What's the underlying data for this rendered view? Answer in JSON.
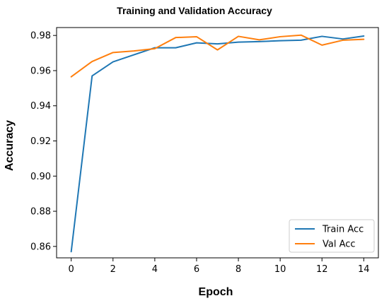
{
  "chart_data": {
    "type": "line",
    "title": "Training and Validation Accuracy",
    "xlabel": "Epoch",
    "ylabel": "Accuracy",
    "x": [
      0,
      1,
      2,
      3,
      4,
      5,
      6,
      7,
      8,
      9,
      10,
      11,
      12,
      13,
      14
    ],
    "xlim": [
      -0.7,
      14.7
    ],
    "ylim": [
      0.8535,
      0.9845
    ],
    "xticks": [
      0,
      2,
      4,
      6,
      8,
      10,
      12,
      14
    ],
    "xtick_labels": [
      "0",
      "2",
      "4",
      "6",
      "8",
      "10",
      "12",
      "14"
    ],
    "yticks": [
      0.86,
      0.88,
      0.9,
      0.92,
      0.94,
      0.96,
      0.98
    ],
    "ytick_labels": [
      "0.86",
      "0.88",
      "0.90",
      "0.92",
      "0.94",
      "0.96",
      "0.98"
    ],
    "grid": false,
    "legend_position": "lower-right",
    "series": [
      {
        "name": "Train Acc",
        "color": "#1f77b4",
        "values": [
          0.857,
          0.957,
          0.965,
          0.969,
          0.973,
          0.973,
          0.9758,
          0.9752,
          0.9762,
          0.9765,
          0.977,
          0.9773,
          0.9795,
          0.978,
          0.9797
        ]
      },
      {
        "name": "Val Acc",
        "color": "#ff7f0e",
        "values": [
          0.9565,
          0.9652,
          0.9703,
          0.9712,
          0.9725,
          0.9788,
          0.9793,
          0.9718,
          0.9795,
          0.9775,
          0.9793,
          0.9802,
          0.9745,
          0.9773,
          0.9778
        ]
      }
    ]
  }
}
